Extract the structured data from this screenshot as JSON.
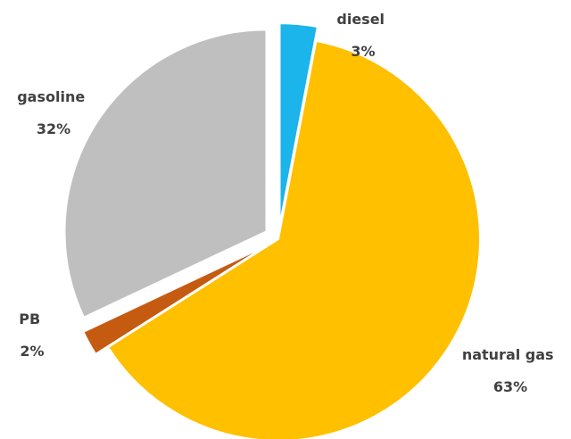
{
  "chart_data": {
    "type": "pie",
    "title": "",
    "slices": [
      {
        "name": "diesel",
        "value": 3,
        "value_label": "3%",
        "color": "#1BB4EB",
        "exploded": true
      },
      {
        "name": "natural gas",
        "value": 63,
        "value_label": "63%",
        "color": "#FFC000",
        "exploded": false
      },
      {
        "name": "PB",
        "value": 2,
        "value_label": "2%",
        "color": "#C55A11",
        "exploded": true
      },
      {
        "name": "gasoline",
        "value": 32,
        "value_label": "32%",
        "color": "#BFBFBF",
        "exploded": true
      }
    ],
    "start_angle_deg": 0,
    "direction": "clockwise",
    "legend": "none",
    "data_labels": "category name and percentage, outside end"
  }
}
